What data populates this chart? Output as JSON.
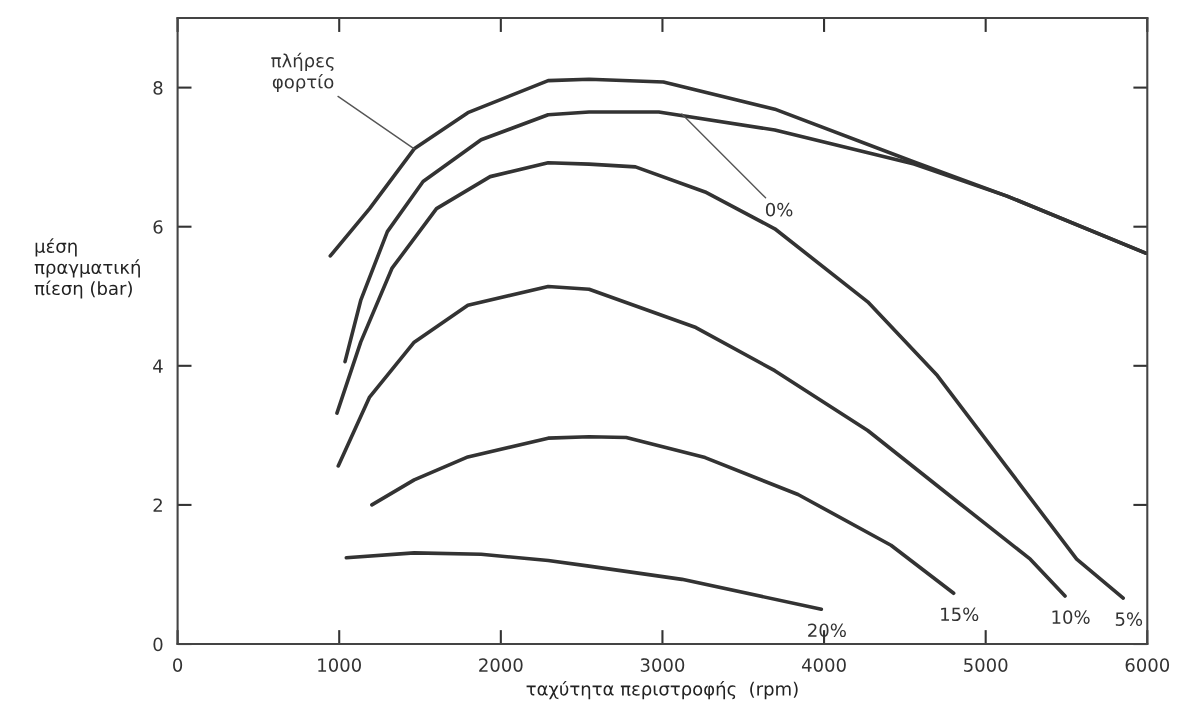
{
  "chart_data": {
    "type": "line",
    "xlabel": "ταχύτητα περιστροφής  (rpm)",
    "ylabel": "μέση\nπραγματική\nπίεση (bar)",
    "xlim": [
      0,
      6000
    ],
    "ylim": [
      0,
      9
    ],
    "xticks": [
      0,
      1000,
      2000,
      3000,
      4000,
      5000,
      6000
    ],
    "yticks": [
      0,
      2,
      4,
      6,
      8
    ],
    "grid": false,
    "marker": "none",
    "line_style": "solid",
    "series": [
      {
        "color": "#333333",
        "x": [
          945,
          1188,
          1464,
          1796,
          2293,
          2546,
          3006,
          3695,
          4557,
          5132,
          5990
        ],
        "values": [
          5.58,
          6.26,
          7.12,
          7.64,
          8.1,
          8.12,
          8.08,
          7.69,
          6.93,
          6.44,
          5.62
        ]
      },
      {
        "color": "#333333",
        "x": [
          1036,
          1133,
          1298,
          1519,
          1878,
          2293,
          2546,
          2977,
          3695,
          4557,
          5132,
          5990
        ],
        "values": [
          4.06,
          4.94,
          5.93,
          6.65,
          7.25,
          7.61,
          7.65,
          7.65,
          7.39,
          6.9,
          6.44,
          5.62
        ]
      },
      {
        "name": "5%",
        "color": "#333333",
        "x": [
          986,
          1133,
          1326,
          1602,
          1934,
          2293,
          2546,
          2833,
          3264,
          3695,
          4270,
          4701,
          5132,
          5563,
          5851
        ],
        "values": [
          3.32,
          4.34,
          5.4,
          6.26,
          6.72,
          6.92,
          6.9,
          6.86,
          6.5,
          5.97,
          4.92,
          3.86,
          2.54,
          1.22,
          0.66
        ]
      },
      {
        "name": "10%",
        "color": "#333333",
        "x": [
          994,
          1188,
          1464,
          1796,
          2293,
          2546,
          3207,
          3695,
          4270,
          4845,
          5276,
          5491
        ],
        "values": [
          2.56,
          3.55,
          4.34,
          4.87,
          5.14,
          5.1,
          4.55,
          3.93,
          3.07,
          2.01,
          1.22,
          0.69
        ]
      },
      {
        "name": "15%",
        "color": "#333333",
        "x": [
          1202,
          1464,
          1796,
          2293,
          2546,
          2776,
          3264,
          3839,
          4414,
          4802
        ],
        "values": [
          2.0,
          2.36,
          2.69,
          2.96,
          2.98,
          2.97,
          2.68,
          2.15,
          1.42,
          0.73
        ]
      },
      {
        "name": "20%",
        "color": "#333333",
        "x": [
          1044,
          1464,
          1878,
          2293,
          2546,
          3121,
          3983
        ],
        "values": [
          1.24,
          1.31,
          1.29,
          1.2,
          1.12,
          0.93,
          0.5
        ]
      }
    ],
    "annotations": [
      {
        "text": "πλήρες\nφορτίο",
        "x": 1464,
        "y": 7.12
      },
      {
        "text": "0%",
        "x": 3120,
        "y": 7.62
      }
    ]
  }
}
